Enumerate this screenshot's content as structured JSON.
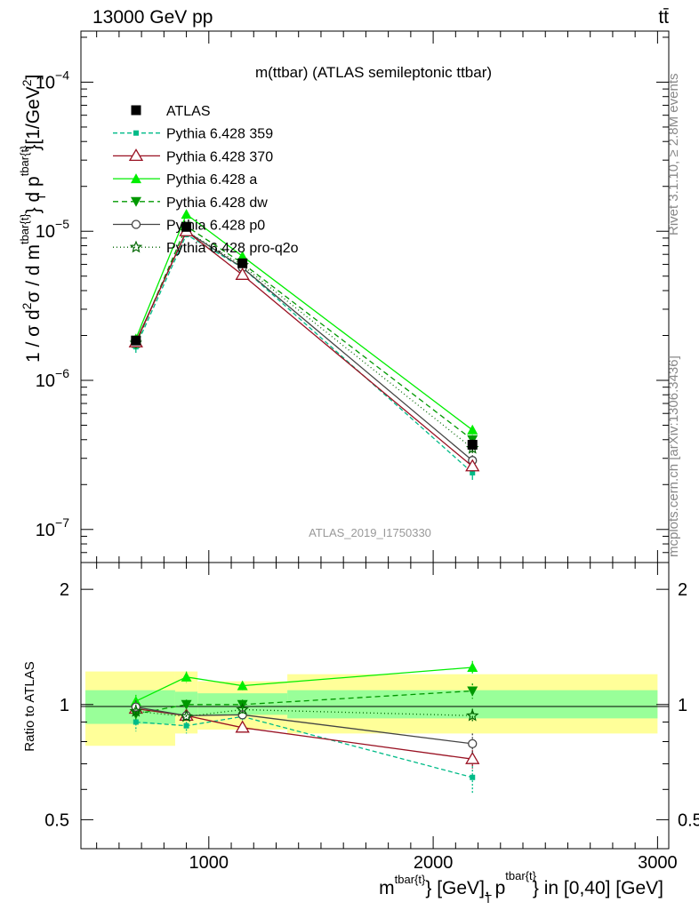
{
  "header": {
    "left": "13000 GeV pp",
    "right": "tt̄"
  },
  "side_labels": {
    "rivet": "Rivet 3.1.10, ≥ 2.8M events",
    "mcplots": "mcplots.cern.ch [arXiv:1306.3436]"
  },
  "chart_data": [
    {
      "type": "line",
      "title": "m(ttbar) (ATLAS semileptonic ttbar)",
      "watermark": "ATLAS_2019_I1750330",
      "ylabel_parts": [
        "1 / σ d",
        "2",
        "σ / d m",
        "tbar{t}",
        "} d p",
        "tbar{t}",
        "T",
        "}[1/GeV",
        "2",
        "]"
      ],
      "yscale": "log",
      "ylim": [
        6e-08,
        0.00022
      ],
      "xlim": [
        430,
        3050
      ],
      "y_ticks": [
        {
          "value": 1e-07,
          "base": "10",
          "exp": "−7"
        },
        {
          "value": 1e-06,
          "base": "10",
          "exp": "−6"
        },
        {
          "value": 1e-05,
          "base": "10",
          "exp": "−5"
        },
        {
          "value": 0.0001,
          "base": "10",
          "exp": "−4"
        }
      ],
      "legend_position": "top-left",
      "x": [
        675,
        900,
        1150,
        2175
      ],
      "series": [
        {
          "name": "ATLAS",
          "color": "#000000",
          "marker": "square",
          "dash": "none",
          "values": [
            1.85e-06,
            1.07e-05,
            6.1e-06,
            3.7e-07
          ],
          "errors": [
            1e-07,
            6e-07,
            3e-07,
            3e-08
          ]
        },
        {
          "name": "Pythia 6.428 359",
          "color": "#00bb88",
          "marker": "small-square",
          "dash": "5,3",
          "values": [
            1.68e-06,
            9.5e-06,
            5.7e-06,
            2.4e-07
          ],
          "errors": [
            1.5e-07,
            4e-07,
            3e-07,
            2.5e-08
          ]
        },
        {
          "name": "Pythia 6.428 370",
          "color": "#991122",
          "marker": "open-triangle",
          "dash": "none",
          "values": [
            1.8e-06,
            1e-05,
            5.1e-06,
            2.65e-07
          ],
          "errors": [
            1e-07,
            4e-07,
            2.5e-07,
            2e-08
          ]
        },
        {
          "name": "Pythia 6.428 a",
          "color": "#00ee00",
          "marker": "triangle",
          "dash": "none",
          "values": [
            1.9e-06,
            1.3e-05,
            6.8e-06,
            4.65e-07
          ],
          "errors": [
            1e-07,
            5e-07,
            3e-07,
            3e-08
          ]
        },
        {
          "name": "Pythia 6.428 dw",
          "color": "#009900",
          "marker": "down-triangle",
          "dash": "6,4",
          "values": [
            1.75e-06,
            1.08e-05,
            6.1e-06,
            4e-07
          ],
          "errors": [
            1e-07,
            4e-07,
            3e-07,
            3e-08
          ]
        },
        {
          "name": "Pythia 6.428 p0",
          "color": "#444444",
          "marker": "open-circle",
          "dash": "none",
          "values": [
            1.82e-06,
            1e-05,
            5.7e-06,
            2.9e-07
          ],
          "errors": [
            1e-07,
            4e-07,
            3e-07,
            2.5e-08
          ]
        },
        {
          "name": "Pythia 6.428 pro-q2o",
          "color": "#006600",
          "marker": "open-star",
          "dash": "1,3",
          "values": [
            1.78e-06,
            1e-05,
            5.9e-06,
            3.5e-07
          ],
          "errors": [
            1e-07,
            4e-07,
            3e-07,
            2.5e-08
          ]
        }
      ]
    },
    {
      "type": "line",
      "ylabel": "Ratio to ATLAS",
      "xlabel_parts": [
        "m",
        "tbar{t}",
        "} [GeV], p",
        "tbar{t}",
        "T",
        "} in [0,40] [GeV]"
      ],
      "yscale": "log",
      "ylim": [
        0.42,
        2.35
      ],
      "xlim": [
        430,
        3050
      ],
      "y_ticks": [
        0.5,
        1,
        2
      ],
      "x_ticks": [
        1000,
        2000,
        3000
      ],
      "bands": [
        {
          "x_range": [
            450,
            850
          ],
          "inner": [
            0.89,
            1.09
          ],
          "outer": [
            0.78,
            1.22
          ]
        },
        {
          "x_range": [
            850,
            950
          ],
          "inner": [
            0.94,
            1.08
          ],
          "outer": [
            0.84,
            1.22
          ]
        },
        {
          "x_range": [
            950,
            1350
          ],
          "inner": [
            0.94,
            1.07
          ],
          "outer": [
            0.86,
            1.15
          ]
        },
        {
          "x_range": [
            1350,
            3000
          ],
          "inner": [
            0.92,
            1.09
          ],
          "outer": [
            0.84,
            1.2
          ]
        }
      ],
      "x": [
        675,
        900,
        1150,
        2175
      ],
      "series": [
        {
          "name": "Pythia 6.428 359",
          "values": [
            0.9,
            0.88,
            0.93,
            0.645
          ],
          "errors": [
            0.05,
            0.04,
            0.03,
            0.06
          ]
        },
        {
          "name": "Pythia 6.428 370",
          "values": [
            0.975,
            0.935,
            0.87,
            0.72
          ],
          "errors": [
            0.04,
            0.03,
            0.02,
            0.04
          ]
        },
        {
          "name": "Pythia 6.428 a",
          "values": [
            1.02,
            1.18,
            1.12,
            1.25
          ],
          "errors": [
            0.04,
            0.04,
            0.03,
            0.05
          ]
        },
        {
          "name": "Pythia 6.428 dw",
          "values": [
            0.945,
            1.0,
            1.0,
            1.085
          ],
          "errors": [
            0.04,
            0.03,
            0.03,
            0.05
          ]
        },
        {
          "name": "Pythia 6.428 p0",
          "values": [
            0.985,
            0.935,
            0.94,
            0.79
          ],
          "errors": [
            0.04,
            0.03,
            0.03,
            0.05
          ]
        },
        {
          "name": "Pythia 6.428 pro-q2o",
          "values": [
            0.96,
            0.93,
            0.97,
            0.935
          ],
          "errors": [
            0.04,
            0.03,
            0.03,
            0.04
          ]
        }
      ]
    }
  ],
  "x_tick_labels": [
    "1000",
    "2000",
    "3000"
  ],
  "ratio_tick_labels": [
    "0.5",
    "1",
    "2"
  ]
}
